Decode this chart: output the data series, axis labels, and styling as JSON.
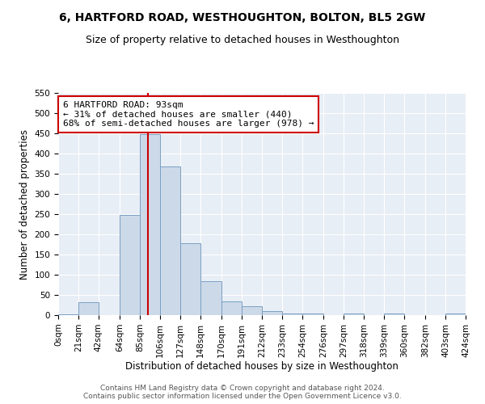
{
  "title": "6, HARTFORD ROAD, WESTHOUGHTON, BOLTON, BL5 2GW",
  "subtitle": "Size of property relative to detached houses in Westhoughton",
  "xlabel": "Distribution of detached houses by size in Westhoughton",
  "ylabel": "Number of detached properties",
  "bin_edges": [
    0,
    21,
    42,
    64,
    85,
    106,
    127,
    148,
    170,
    191,
    212,
    233,
    254,
    276,
    297,
    318,
    339,
    360,
    382,
    403,
    424
  ],
  "counts": [
    3,
    32,
    0,
    248,
    448,
    368,
    178,
    85,
    35,
    22,
    10,
    4,
    4,
    0,
    5,
    0,
    5,
    0,
    0,
    5
  ],
  "bar_color": "#ccd9e8",
  "bar_edge_color": "#7aa0c4",
  "property_size": 93,
  "vline_color": "#cc0000",
  "annotation_text": "6 HARTFORD ROAD: 93sqm\n← 31% of detached houses are smaller (440)\n68% of semi-detached houses are larger (978) →",
  "annotation_box_color": "#ffffff",
  "annotation_box_edge": "#cc0000",
  "ylim": [
    0,
    550
  ],
  "yticks": [
    0,
    50,
    100,
    150,
    200,
    250,
    300,
    350,
    400,
    450,
    500,
    550
  ],
  "footer1": "Contains HM Land Registry data © Crown copyright and database right 2024.",
  "footer2": "Contains public sector information licensed under the Open Government Licence v3.0.",
  "bg_color": "#ffffff",
  "plot_bg_color": "#e8eef5",
  "title_fontsize": 10,
  "subtitle_fontsize": 9,
  "tick_label_size": 7.5,
  "axis_label_size": 8.5,
  "footer_fontsize": 6.5
}
